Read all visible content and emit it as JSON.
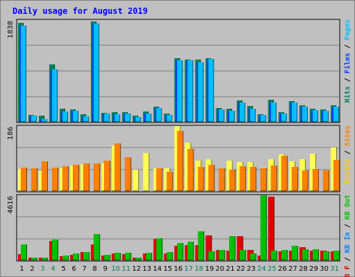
{
  "chart_data": {
    "type": "bar",
    "title": "Daily usage for August 2019",
    "categories": [
      "1",
      "2",
      "3",
      "4",
      "5",
      "6",
      "7",
      "8",
      "9",
      "10",
      "11",
      "12",
      "13",
      "14",
      "15",
      "16",
      "17",
      "18",
      "19",
      "20",
      "21",
      "22",
      "23",
      "24",
      "25",
      "26",
      "27",
      "28",
      "29",
      "30",
      "31"
    ],
    "weekend_days": [
      "3",
      "4",
      "10",
      "11",
      "17",
      "18",
      "24",
      "25",
      "31"
    ],
    "panels": [
      {
        "id": "hits",
        "max_label": "1838",
        "ylim": [
          0,
          1838
        ],
        "axis_labels": [
          {
            "text": "Hits",
            "color": "#00805c"
          },
          {
            "text": " / ",
            "color": "#000000"
          },
          {
            "text": "Files",
            "color": "#0040ff"
          },
          {
            "text": " / ",
            "color": "#000000"
          },
          {
            "text": "Pages",
            "color": "#00c0ff"
          }
        ],
        "series": [
          {
            "name": "Hits",
            "color": "#00805c",
            "values": [
              1788,
              127,
              114,
              1040,
              238,
              224,
              133,
              1816,
              165,
              176,
              171,
              117,
              186,
              281,
              152,
              1146,
              1131,
              1121,
              1152,
              251,
              236,
              382,
              288,
              138,
              398,
              175,
              369,
              303,
              237,
              221,
              300
            ]
          },
          {
            "name": "Files",
            "color": "#0040ff",
            "values": [
              1739,
              112,
              55,
              953,
              188,
              195,
              101,
              1773,
              144,
              141,
              149,
              86,
              149,
              246,
              131,
              1118,
              1114,
              1079,
              1136,
              221,
              204,
              348,
              240,
              122,
              351,
              156,
              350,
              276,
              209,
              204,
              276
            ]
          },
          {
            "name": "Pages",
            "color": "#00c0ff",
            "values": [
              1739,
              112,
              55,
              953,
              188,
              195,
              101,
              1773,
              144,
              141,
              149,
              86,
              149,
              246,
              131,
              1118,
              1114,
              1079,
              1136,
              221,
              204,
              348,
              240,
              122,
              351,
              156,
              350,
              276,
              209,
              204,
              276
            ]
          }
        ]
      },
      {
        "id": "visits",
        "max_label": "186",
        "ylim": [
          0,
          186
        ],
        "axis_labels": [
          {
            "text": "Visits",
            "color": "#ffc800"
          },
          {
            "text": " / ",
            "color": "#000000"
          },
          {
            "text": "Sites",
            "color": "#ff8000"
          }
        ],
        "series": [
          {
            "name": "Visits",
            "color": "#ffff55",
            "values": [
              63,
              0,
              58,
              0,
              66,
              74,
              78,
              0,
              80,
              131,
              0,
              62,
              109,
              66,
              65,
              186,
              138,
              88,
              92,
              0,
              87,
              84,
              83,
              0,
              92,
              104,
              85,
              92,
              106,
              0,
              124
            ]
          },
          {
            "name": "Sites",
            "color": "#ff8000",
            "values": [
              67,
              66,
              85,
              67,
              71,
              76,
              80,
              79,
              87,
              137,
              96,
              0,
              0,
              65,
              55,
              172,
              120,
              69,
              75,
              65,
              61,
              72,
              70,
              66,
              74,
              100,
              70,
              59,
              64,
              59,
              90
            ]
          }
        ]
      },
      {
        "id": "kbytes",
        "max_label": "4616",
        "ylim": [
          0,
          4616
        ],
        "axis_labels": [
          {
            "text": "KB F",
            "color": "#e00000"
          },
          {
            "text": " / ",
            "color": "#000000"
          },
          {
            "text": "KB In",
            "color": "#0080ff"
          },
          {
            "text": " / ",
            "color": "#000000"
          },
          {
            "text": "KB Out",
            "color": "#00c000"
          }
        ],
        "series": [
          {
            "name": "KB F",
            "color": "#e00000",
            "values": [
              426,
              186,
              186,
              1360,
              310,
              370,
              610,
              1107,
              350,
              500,
              460,
              186,
              480,
              1500,
              500,
              1040,
              1080,
              1080,
              1750,
              720,
              700,
              1700,
              740,
              340,
              4500,
              650,
              680,
              910,
              700,
              700,
              620
            ]
          },
          {
            "name": "KB Out",
            "color": "#00c000",
            "values": [
              1140,
              200,
              200,
              1490,
              360,
              500,
              610,
              1850,
              380,
              530,
              530,
              200,
              530,
              1580,
              580,
              1240,
              1350,
              2050,
              660,
              720,
              1740,
              740,
              500,
              4606,
              680,
              740,
              1020,
              800,
              800,
              640,
              700
            ]
          }
        ]
      }
    ]
  }
}
